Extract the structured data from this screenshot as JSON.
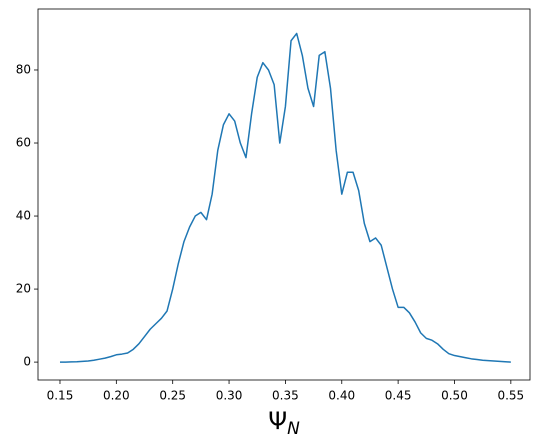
{
  "chart_data": {
    "type": "line",
    "xlabel": {
      "symbol": "Ψ",
      "subscript": "N"
    },
    "x": [
      0.15,
      0.155,
      0.16,
      0.165,
      0.17,
      0.175,
      0.18,
      0.185,
      0.19,
      0.195,
      0.2,
      0.205,
      0.21,
      0.215,
      0.22,
      0.225,
      0.23,
      0.235,
      0.24,
      0.245,
      0.25,
      0.255,
      0.26,
      0.265,
      0.27,
      0.275,
      0.28,
      0.285,
      0.29,
      0.295,
      0.3,
      0.305,
      0.31,
      0.315,
      0.32,
      0.325,
      0.33,
      0.335,
      0.34,
      0.345,
      0.35,
      0.355,
      0.36,
      0.365,
      0.37,
      0.375,
      0.38,
      0.385,
      0.39,
      0.395,
      0.4,
      0.405,
      0.41,
      0.415,
      0.42,
      0.425,
      0.43,
      0.435,
      0.44,
      0.445,
      0.45,
      0.455,
      0.46,
      0.465,
      0.47,
      0.475,
      0.48,
      0.485,
      0.49,
      0.495,
      0.5,
      0.505,
      0.51,
      0.515,
      0.52,
      0.525,
      0.53,
      0.535,
      0.54,
      0.545,
      0.55
    ],
    "series": [
      {
        "color": "#1f77b4",
        "values": [
          0,
          0,
          0.05,
          0.1,
          0.2,
          0.3,
          0.5,
          0.8,
          1.1,
          1.5,
          2,
          2.2,
          2.5,
          3.5,
          5,
          7,
          9,
          10.5,
          12,
          14,
          20,
          27,
          33,
          37,
          40,
          41,
          39,
          46,
          58,
          65,
          68,
          66,
          60,
          56,
          68,
          78,
          82,
          80,
          76,
          60,
          70,
          88,
          90,
          84,
          75,
          70,
          84,
          85,
          75,
          58,
          46,
          52,
          52,
          47,
          38,
          33,
          34,
          32,
          26,
          20,
          15,
          15,
          13.5,
          11,
          8,
          6.5,
          6,
          5,
          3.5,
          2.3,
          1.8,
          1.5,
          1.2,
          0.9,
          0.7,
          0.5,
          0.4,
          0.3,
          0.2,
          0.1,
          0
        ]
      }
    ],
    "xlim": [
      0.1305,
      0.567
    ],
    "ylim": [
      -4.9,
      96.7
    ],
    "xticks": [
      0.15,
      {
        "value": 0.2,
        "label": "0.20"
      },
      0.25,
      {
        "value": 0.3,
        "label": "0.30"
      },
      0.35,
      {
        "value": 0.4,
        "label": "0.40"
      },
      0.45,
      {
        "value": 0.5,
        "label": "0.50"
      },
      0.55
    ],
    "yticks": [
      0,
      20,
      40,
      60,
      80
    ]
  }
}
